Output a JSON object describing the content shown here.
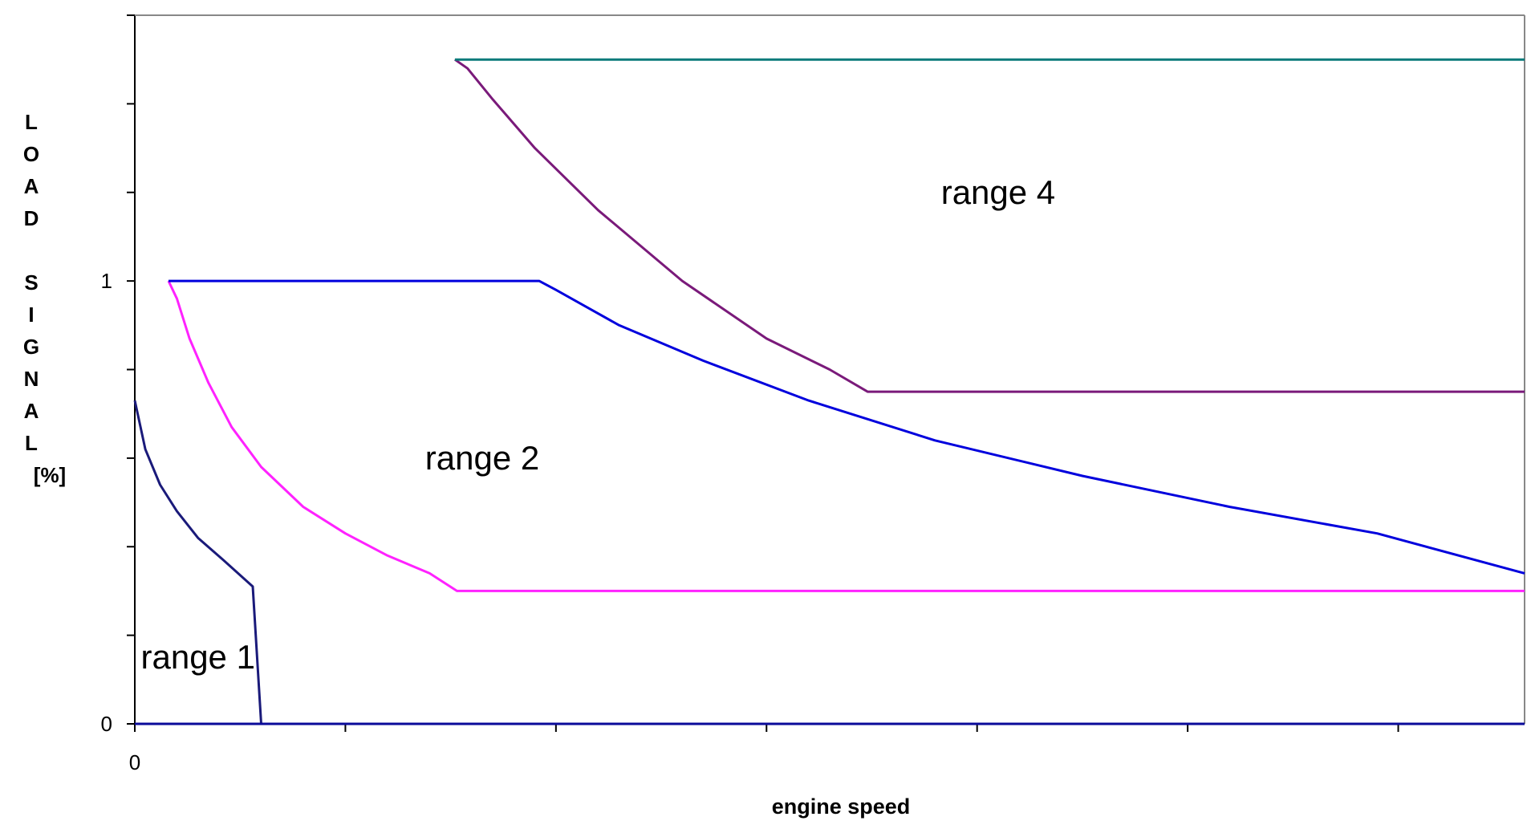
{
  "chart_data": {
    "type": "line",
    "title": "",
    "xlabel": "engine speed",
    "ylabel_lines": [
      "L",
      "O",
      "A",
      "D",
      "",
      "S",
      "I",
      "G",
      "N",
      "A",
      "L",
      "[%]"
    ],
    "y_tick_labels": [
      {
        "value": 0,
        "label": "0"
      },
      {
        "value": 1,
        "label": "1"
      }
    ],
    "x_tick_labels": [
      {
        "value": 0,
        "label": "0"
      }
    ],
    "xlim": [
      0,
      6.6
    ],
    "ylim": [
      0,
      1.6
    ],
    "y_minor_ticks": [
      0.2,
      0.4,
      0.6,
      0.8,
      1.2,
      1.4,
      1.6
    ],
    "x_ticks": [
      1,
      2,
      3,
      4,
      5,
      6
    ],
    "grid": false,
    "legend": "none",
    "annotations": [
      {
        "text": "range 1",
        "x": 0.3,
        "y": 0.15
      },
      {
        "text": "range 2",
        "x": 1.65,
        "y": 0.6
      },
      {
        "text": "range 4",
        "x": 4.1,
        "y": 1.2
      }
    ],
    "series": [
      {
        "color": "#1a1a7a",
        "x": [
          0,
          0.05,
          0.12,
          0.2,
          0.3,
          0.42,
          0.56,
          0.6
        ],
        "y": [
          0.73,
          0.62,
          0.54,
          0.48,
          0.42,
          0.37,
          0.31,
          0.0
        ]
      },
      {
        "color": "#0a0a9a",
        "x": [
          0,
          6.6
        ],
        "y": [
          0.0,
          0.0
        ]
      },
      {
        "color": "#ff22ff",
        "x": [
          0.16,
          0.2,
          0.26,
          0.35,
          0.46,
          0.6,
          0.8,
          1.0,
          1.2,
          1.4,
          1.53,
          6.6
        ],
        "y": [
          1.0,
          0.96,
          0.87,
          0.77,
          0.67,
          0.58,
          0.49,
          0.43,
          0.38,
          0.34,
          0.3,
          0.3
        ]
      },
      {
        "color": "#0000dd",
        "x": [
          0.16,
          1.92,
          2.0,
          2.3,
          2.7,
          3.2,
          3.8,
          4.5,
          5.2,
          5.9,
          6.6
        ],
        "y": [
          1.0,
          1.0,
          0.98,
          0.9,
          0.82,
          0.73,
          0.64,
          0.56,
          0.49,
          0.43,
          0.34
        ]
      },
      {
        "color": "#7a1a7a",
        "x": [
          1.52,
          1.58,
          1.7,
          1.9,
          2.2,
          2.6,
          3.0,
          3.3,
          3.48,
          6.6
        ],
        "y": [
          1.5,
          1.48,
          1.41,
          1.3,
          1.16,
          1.0,
          0.87,
          0.8,
          0.75,
          0.75
        ]
      },
      {
        "color": "#0a7a7a",
        "x": [
          1.52,
          6.6
        ],
        "y": [
          1.5,
          1.5
        ]
      }
    ]
  }
}
